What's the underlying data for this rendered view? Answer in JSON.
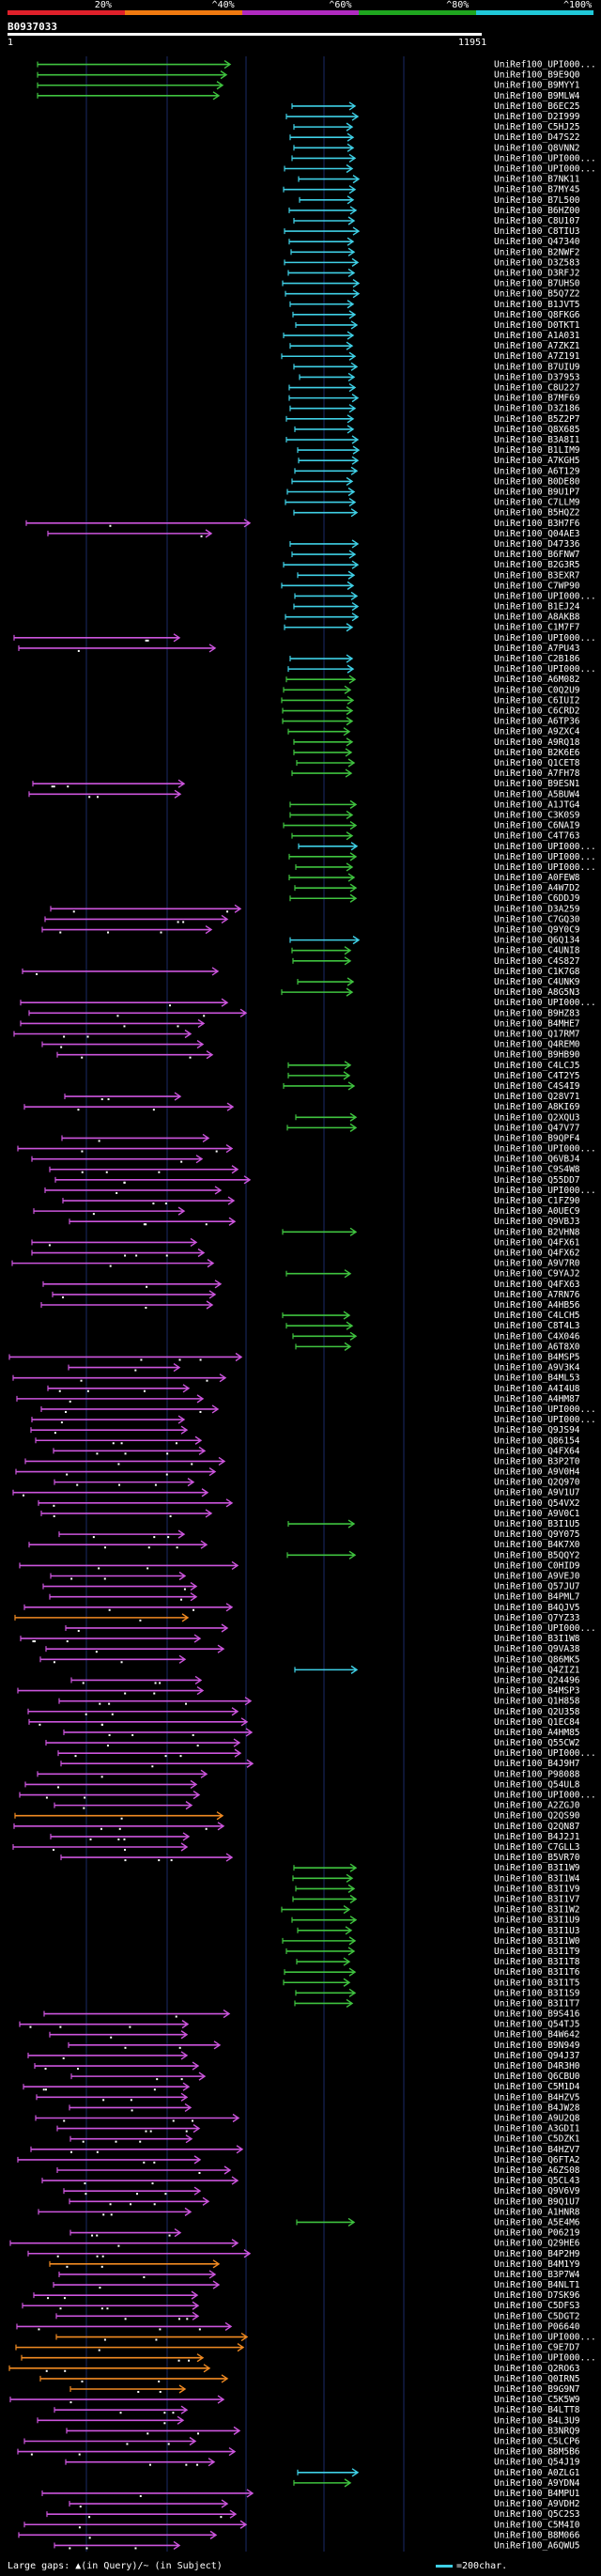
{
  "legend": [
    {
      "label": "20%",
      "color": "#e0202a"
    },
    {
      "label": "^40%",
      "color": "#f07a10"
    },
    {
      "label": "^60%",
      "color": "#b02ac0"
    },
    {
      "label": "^80%",
      "color": "#1fa61f"
    },
    {
      "label": "^100%",
      "color": "#20c8d8"
    }
  ],
  "header": {
    "sequence_id": "B0937033",
    "range_start": "1",
    "range_end": "11951"
  },
  "colors": {
    "green": "#3fc33f",
    "cyan": "#3fd0e6",
    "magenta": "#cc55dd",
    "orange": "#f08a22",
    "grid": "#1a2a66"
  },
  "hits": [
    {
      "label": "UniRef100_UPI000...",
      "color": "green"
    },
    {
      "label": "UniRef100_B9E9Q0",
      "color": "green"
    },
    {
      "label": "UniRef100_B9MYY1",
      "color": "green"
    },
    {
      "label": "UniRef100_B9MLW4",
      "color": "green"
    },
    {
      "label": "UniRef100_B6EC25",
      "color": "cyan"
    },
    {
      "label": "UniRef100_D2I999",
      "color": "cyan"
    },
    {
      "label": "UniRef100_C5HJ25",
      "color": "cyan"
    },
    {
      "label": "UniRef100_D47S22",
      "color": "cyan"
    },
    {
      "label": "UniRef100_Q8VNN2",
      "color": "cyan"
    },
    {
      "label": "UniRef100_UPI000...",
      "color": "cyan"
    },
    {
      "label": "UniRef100_UPI000...",
      "color": "cyan"
    },
    {
      "label": "UniRef100_B7NK11",
      "color": "cyan"
    },
    {
      "label": "UniRef100_B7MY45",
      "color": "cyan"
    },
    {
      "label": "UniRef100_B7L500",
      "color": "cyan"
    },
    {
      "label": "UniRef100_B6HZ00",
      "color": "cyan"
    },
    {
      "label": "UniRef100_C8U107",
      "color": "cyan"
    },
    {
      "label": "UniRef100_C8TIU3",
      "color": "cyan"
    },
    {
      "label": "UniRef100_Q47340",
      "color": "cyan"
    },
    {
      "label": "UniRef100_B2NWF2",
      "color": "cyan"
    },
    {
      "label": "UniRef100_D3Z583",
      "color": "cyan"
    },
    {
      "label": "UniRef100_D3RFJ2",
      "color": "cyan"
    },
    {
      "label": "UniRef100_B7UHS0",
      "color": "cyan"
    },
    {
      "label": "UniRef100_B5Q7Z2",
      "color": "cyan"
    },
    {
      "label": "UniRef100_B1JVT5",
      "color": "cyan"
    },
    {
      "label": "UniRef100_Q8FKG6",
      "color": "cyan"
    },
    {
      "label": "UniRef100_D0TKT1",
      "color": "cyan"
    },
    {
      "label": "UniRef100_A1A031",
      "color": "cyan"
    },
    {
      "label": "UniRef100_A7ZKZ1",
      "color": "cyan"
    },
    {
      "label": "UniRef100_A7Z191",
      "color": "cyan"
    },
    {
      "label": "UniRef100_B7UIU9",
      "color": "cyan"
    },
    {
      "label": "UniRef100_D37953",
      "color": "cyan"
    },
    {
      "label": "UniRef100_C8U227",
      "color": "cyan"
    },
    {
      "label": "UniRef100_B7MF69",
      "color": "cyan"
    },
    {
      "label": "UniRef100_D3Z186",
      "color": "cyan"
    },
    {
      "label": "UniRef100_B5Z2P7",
      "color": "cyan"
    },
    {
      "label": "UniRef100_Q8X685",
      "color": "cyan"
    },
    {
      "label": "UniRef100_B3A8I1",
      "color": "cyan"
    },
    {
      "label": "UniRef100_B1LIM9",
      "color": "cyan"
    },
    {
      "label": "UniRef100_A7KGH5",
      "color": "cyan"
    },
    {
      "label": "UniRef100_A6T129",
      "color": "cyan"
    },
    {
      "label": "UniRef100_B0DE80",
      "color": "cyan"
    },
    {
      "label": "UniRef100_B9U1P7",
      "color": "cyan"
    },
    {
      "label": "UniRef100_C7LLM9",
      "color": "cyan"
    },
    {
      "label": "UniRef100_B5HQZ2",
      "color": "cyan"
    },
    {
      "label": "UniRef100_B3H7F6",
      "color": "magenta"
    },
    {
      "label": "UniRef100_Q04AE3",
      "color": "magenta"
    },
    {
      "label": "UniRef100_D47336",
      "color": "cyan"
    },
    {
      "label": "UniRef100_B6FNW7",
      "color": "cyan"
    },
    {
      "label": "UniRef100_B2G3R5",
      "color": "cyan"
    },
    {
      "label": "UniRef100_B3EXR7",
      "color": "cyan"
    },
    {
      "label": "UniRef100_C7WP90",
      "color": "cyan"
    },
    {
      "label": "UniRef100_UPI000...",
      "color": "cyan"
    },
    {
      "label": "UniRef100_B1EJ24",
      "color": "cyan"
    },
    {
      "label": "UniRef100_A8AKB8",
      "color": "cyan"
    },
    {
      "label": "UniRef100_C1M7F7",
      "color": "cyan"
    },
    {
      "label": "UniRef100_UPI000...",
      "color": "magenta"
    },
    {
      "label": "UniRef100_A7PU43",
      "color": "magenta"
    },
    {
      "label": "UniRef100_C2B186",
      "color": "cyan"
    },
    {
      "label": "UniRef100_UPI000...",
      "color": "cyan"
    },
    {
      "label": "UniRef100_A6M082",
      "color": "green"
    },
    {
      "label": "UniRef100_C0Q2U9",
      "color": "green"
    },
    {
      "label": "UniRef100_C6IUI2",
      "color": "green"
    },
    {
      "label": "UniRef100_C6CRD2",
      "color": "green"
    },
    {
      "label": "UniRef100_A6TP36",
      "color": "green"
    },
    {
      "label": "UniRef100_A9ZXC4",
      "color": "green"
    },
    {
      "label": "UniRef100_A9RQ18",
      "color": "green"
    },
    {
      "label": "UniRef100_B2K6E6",
      "color": "green"
    },
    {
      "label": "UniRef100_Q1CET8",
      "color": "green"
    },
    {
      "label": "UniRef100_A7FH78",
      "color": "green"
    },
    {
      "label": "UniRef100_B9ESN1",
      "color": "magenta"
    },
    {
      "label": "UniRef100_A5BUW4",
      "color": "magenta"
    },
    {
      "label": "UniRef100_A1JTG4",
      "color": "green"
    },
    {
      "label": "UniRef100_C3K0S9",
      "color": "green"
    },
    {
      "label": "UniRef100_C6NAI9",
      "color": "green"
    },
    {
      "label": "UniRef100_C4T763",
      "color": "green"
    },
    {
      "label": "UniRef100_UPI000...",
      "color": "cyan"
    },
    {
      "label": "UniRef100_UPI000...",
      "color": "green"
    },
    {
      "label": "UniRef100_UPI000...",
      "color": "green"
    },
    {
      "label": "UniRef100_A0FEW8",
      "color": "green"
    },
    {
      "label": "UniRef100_A4W7D2",
      "color": "green"
    },
    {
      "label": "UniRef100_C6DDJ9",
      "color": "green"
    },
    {
      "label": "UniRef100_D3A259",
      "color": "magenta"
    },
    {
      "label": "UniRef100_C7GQ30",
      "color": "magenta"
    },
    {
      "label": "UniRef100_Q9Y0C9",
      "color": "magenta"
    },
    {
      "label": "UniRef100_Q6Q134",
      "color": "cyan"
    },
    {
      "label": "UniRef100_C4UNI8",
      "color": "green"
    },
    {
      "label": "UniRef100_C4S827",
      "color": "green"
    },
    {
      "label": "UniRef100_C1K7G8",
      "color": "magenta"
    },
    {
      "label": "UniRef100_C4UNK9",
      "color": "green"
    },
    {
      "label": "UniRef100_A8G5N3",
      "color": "green"
    },
    {
      "label": "UniRef100_UPI000...",
      "color": "magenta"
    },
    {
      "label": "UniRef100_B9HZ83",
      "color": "magenta"
    },
    {
      "label": "UniRef100_B4MHE7",
      "color": "magenta"
    },
    {
      "label": "UniRef100_Q17RM7",
      "color": "magenta"
    },
    {
      "label": "UniRef100_Q4REM0",
      "color": "magenta"
    },
    {
      "label": "UniRef100_B9HB90",
      "color": "magenta"
    },
    {
      "label": "UniRef100_C4LCJ5",
      "color": "green"
    },
    {
      "label": "UniRef100_C4T2Y5",
      "color": "green"
    },
    {
      "label": "UniRef100_C4S4I9",
      "color": "green"
    },
    {
      "label": "UniRef100_Q28V71",
      "color": "magenta"
    },
    {
      "label": "UniRef100_A8KI69",
      "color": "magenta"
    },
    {
      "label": "UniRef100_Q2XQU3",
      "color": "green"
    },
    {
      "label": "UniRef100_Q47V77",
      "color": "green"
    },
    {
      "label": "UniRef100_B9QPF4",
      "color": "magenta"
    },
    {
      "label": "UniRef100_UPI000...",
      "color": "magenta"
    },
    {
      "label": "UniRef100_Q6VBJ4",
      "color": "magenta"
    },
    {
      "label": "UniRef100_C9S4W8",
      "color": "magenta"
    },
    {
      "label": "UniRef100_Q55DD7",
      "color": "magenta"
    },
    {
      "label": "UniRef100_UPI000...",
      "color": "magenta"
    },
    {
      "label": "UniRef100_C1FZ90",
      "color": "magenta"
    },
    {
      "label": "UniRef100_A0UEC9",
      "color": "magenta"
    },
    {
      "label": "UniRef100_Q9VBJ3",
      "color": "magenta"
    },
    {
      "label": "UniRef100_B2VHN8",
      "color": "green"
    },
    {
      "label": "UniRef100_Q4FX61",
      "color": "magenta"
    },
    {
      "label": "UniRef100_Q4FX62",
      "color": "magenta"
    },
    {
      "label": "UniRef100_A9V7R0",
      "color": "magenta"
    },
    {
      "label": "UniRef100_C9YAJ2",
      "color": "green"
    },
    {
      "label": "UniRef100_Q4FX63",
      "color": "magenta"
    },
    {
      "label": "UniRef100_A7RN76",
      "color": "magenta"
    },
    {
      "label": "UniRef100_A4HB56",
      "color": "magenta"
    },
    {
      "label": "UniRef100_C4LCH5",
      "color": "green"
    },
    {
      "label": "UniRef100_C8T4L3",
      "color": "green"
    },
    {
      "label": "UniRef100_C4X046",
      "color": "green"
    },
    {
      "label": "UniRef100_A6T8X0",
      "color": "green"
    },
    {
      "label": "UniRef100_B4MSP5",
      "color": "magenta"
    },
    {
      "label": "UniRef100_A9V3K4",
      "color": "magenta"
    },
    {
      "label": "UniRef100_B4ML53",
      "color": "magenta"
    },
    {
      "label": "UniRef100_A4I4U8",
      "color": "magenta"
    },
    {
      "label": "UniRef100_A4HM87",
      "color": "magenta"
    },
    {
      "label": "UniRef100_UPI000...",
      "color": "magenta"
    },
    {
      "label": "UniRef100_UPI000...",
      "color": "magenta"
    },
    {
      "label": "UniRef100_Q9JS94",
      "color": "magenta"
    },
    {
      "label": "UniRef100_Q86154",
      "color": "magenta"
    },
    {
      "label": "UniRef100_Q4FX64",
      "color": "magenta"
    },
    {
      "label": "UniRef100_B3P2T0",
      "color": "magenta"
    },
    {
      "label": "UniRef100_A9V0H4",
      "color": "magenta"
    },
    {
      "label": "UniRef100_Q2Q970",
      "color": "magenta"
    },
    {
      "label": "UniRef100_A9V1U7",
      "color": "magenta"
    },
    {
      "label": "UniRef100_Q54VX2",
      "color": "magenta"
    },
    {
      "label": "UniRef100_A9V0C1",
      "color": "magenta"
    },
    {
      "label": "UniRef100_B3I1U5",
      "color": "green"
    },
    {
      "label": "UniRef100_Q9Y075",
      "color": "magenta"
    },
    {
      "label": "UniRef100_B4K7X0",
      "color": "magenta"
    },
    {
      "label": "UniRef100_B5QQY2",
      "color": "green"
    },
    {
      "label": "UniRef100_C0HID9",
      "color": "magenta"
    },
    {
      "label": "UniRef100_A9VEJ0",
      "color": "magenta"
    },
    {
      "label": "UniRef100_Q57JU7",
      "color": "magenta"
    },
    {
      "label": "UniRef100_B4PML7",
      "color": "magenta"
    },
    {
      "label": "UniRef100_B4QJV5",
      "color": "magenta"
    },
    {
      "label": "UniRef100_Q7YZ33",
      "color": "orange"
    },
    {
      "label": "UniRef100_UPI000...",
      "color": "magenta"
    },
    {
      "label": "UniRef100_B3I1W8",
      "color": "magenta"
    },
    {
      "label": "UniRef100_Q9VA38",
      "color": "magenta"
    },
    {
      "label": "UniRef100_Q86MK5",
      "color": "magenta"
    },
    {
      "label": "UniRef100_Q4ZIZ1",
      "color": "cyan"
    },
    {
      "label": "UniRef100_Q24496",
      "color": "magenta"
    },
    {
      "label": "UniRef100_B4MSP3",
      "color": "magenta"
    },
    {
      "label": "UniRef100_Q1H858",
      "color": "magenta"
    },
    {
      "label": "UniRef100_Q2U358",
      "color": "magenta"
    },
    {
      "label": "UniRef100_Q1EC84",
      "color": "magenta"
    },
    {
      "label": "UniRef100_A4HM85",
      "color": "magenta"
    },
    {
      "label": "UniRef100_Q55CW2",
      "color": "magenta"
    },
    {
      "label": "UniRef100_UPI000...",
      "color": "magenta"
    },
    {
      "label": "UniRef100_B4J9H7",
      "color": "magenta"
    },
    {
      "label": "UniRef100_P98088",
      "color": "magenta"
    },
    {
      "label": "UniRef100_Q54UL8",
      "color": "magenta"
    },
    {
      "label": "UniRef100_UPI000...",
      "color": "magenta"
    },
    {
      "label": "UniRef100_A2ZGJ0",
      "color": "magenta"
    },
    {
      "label": "UniRef100_Q2QS90",
      "color": "orange"
    },
    {
      "label": "UniRef100_Q2QN87",
      "color": "magenta"
    },
    {
      "label": "UniRef100_B4J2J1",
      "color": "magenta"
    },
    {
      "label": "UniRef100_C7GLL3",
      "color": "magenta"
    },
    {
      "label": "UniRef100_B5VR70",
      "color": "magenta"
    },
    {
      "label": "UniRef100_B3I1W9",
      "color": "green"
    },
    {
      "label": "UniRef100_B3I1W4",
      "color": "green"
    },
    {
      "label": "UniRef100_B3I1V9",
      "color": "green"
    },
    {
      "label": "UniRef100_B3I1V7",
      "color": "green"
    },
    {
      "label": "UniRef100_B3I1W2",
      "color": "green"
    },
    {
      "label": "UniRef100_B3I1U9",
      "color": "green"
    },
    {
      "label": "UniRef100_B3I1U3",
      "color": "green"
    },
    {
      "label": "UniRef100_B3I1W0",
      "color": "green"
    },
    {
      "label": "UniRef100_B3I1T9",
      "color": "green"
    },
    {
      "label": "UniRef100_B3I1T8",
      "color": "green"
    },
    {
      "label": "UniRef100_B3I1T6",
      "color": "green"
    },
    {
      "label": "UniRef100_B3I1T5",
      "color": "green"
    },
    {
      "label": "UniRef100_B3I1S9",
      "color": "green"
    },
    {
      "label": "UniRef100_B3I1T7",
      "color": "green"
    },
    {
      "label": "UniRef100_B9S416",
      "color": "magenta"
    },
    {
      "label": "UniRef100_Q54TJ5",
      "color": "magenta"
    },
    {
      "label": "UniRef100_B4W642",
      "color": "magenta"
    },
    {
      "label": "UniRef100_B9N949",
      "color": "magenta"
    },
    {
      "label": "UniRef100_Q94J37",
      "color": "magenta"
    },
    {
      "label": "UniRef100_D4R3H0",
      "color": "magenta"
    },
    {
      "label": "UniRef100_Q6CBU0",
      "color": "magenta"
    },
    {
      "label": "UniRef100_C5M1D4",
      "color": "magenta"
    },
    {
      "label": "UniRef100_B4HZV5",
      "color": "magenta"
    },
    {
      "label": "UniRef100_B4JW28",
      "color": "magenta"
    },
    {
      "label": "UniRef100_A9U2Q8",
      "color": "magenta"
    },
    {
      "label": "UniRef100_A3GDI1",
      "color": "magenta"
    },
    {
      "label": "UniRef100_C5DZK1",
      "color": "magenta"
    },
    {
      "label": "UniRef100_B4HZV7",
      "color": "magenta"
    },
    {
      "label": "UniRef100_Q6FTA2",
      "color": "magenta"
    },
    {
      "label": "UniRef100_A6ZS08",
      "color": "magenta"
    },
    {
      "label": "UniRef100_Q5CL43",
      "color": "magenta"
    },
    {
      "label": "UniRef100_Q9V6V9",
      "color": "magenta"
    },
    {
      "label": "UniRef100_B9Q1U7",
      "color": "magenta"
    },
    {
      "label": "UniRef100_A1HNR8",
      "color": "magenta"
    },
    {
      "label": "UniRef100_A5E4M6",
      "color": "green"
    },
    {
      "label": "UniRef100_P06219",
      "color": "magenta"
    },
    {
      "label": "UniRef100_Q29HE6",
      "color": "magenta"
    },
    {
      "label": "UniRef100_B4P2H9",
      "color": "magenta"
    },
    {
      "label": "UniRef100_B4M1Y9",
      "color": "orange"
    },
    {
      "label": "UniRef100_B3P7W4",
      "color": "magenta"
    },
    {
      "label": "UniRef100_B4NLT1",
      "color": "magenta"
    },
    {
      "label": "UniRef100_D7SK96",
      "color": "magenta"
    },
    {
      "label": "UniRef100_C5DFS3",
      "color": "magenta"
    },
    {
      "label": "UniRef100_C5DGT2",
      "color": "magenta"
    },
    {
      "label": "UniRef100_P06640",
      "color": "magenta"
    },
    {
      "label": "UniRef100_UPI000...",
      "color": "orange"
    },
    {
      "label": "UniRef100_C9E7D7",
      "color": "orange"
    },
    {
      "label": "UniRef100_UPI000...",
      "color": "orange"
    },
    {
      "label": "UniRef100_Q2RO63",
      "color": "orange"
    },
    {
      "label": "UniRef100_Q0IRN5",
      "color": "orange"
    },
    {
      "label": "UniRef100_B9G9N7",
      "color": "orange"
    },
    {
      "label": "UniRef100_C5K5W9",
      "color": "magenta"
    },
    {
      "label": "UniRef100_B4LTT8",
      "color": "magenta"
    },
    {
      "label": "UniRef100_B4L3U9",
      "color": "magenta"
    },
    {
      "label": "UniRef100_B3NRQ9",
      "color": "magenta"
    },
    {
      "label": "UniRef100_C5LCP6",
      "color": "magenta"
    },
    {
      "label": "UniRef100_B8M5B6",
      "color": "magenta"
    },
    {
      "label": "UniRef100_Q54J19",
      "color": "magenta"
    },
    {
      "label": "UniRef100_A0ZLG1",
      "color": "cyan"
    },
    {
      "label": "UniRef100_A9YDN4",
      "color": "green"
    },
    {
      "label": "UniRef100_B4MPU1",
      "color": "magenta"
    },
    {
      "label": "UniRef100_A9VDH2",
      "color": "magenta"
    },
    {
      "label": "UniRef100_Q5C2S3",
      "color": "magenta"
    },
    {
      "label": "UniRef100_C5M4I0",
      "color": "magenta"
    },
    {
      "label": "UniRef100_B8M066",
      "color": "magenta"
    },
    {
      "label": "UniRef100_A6QWU5",
      "color": "magenta"
    }
  ],
  "footer": {
    "note": "Large gaps: ▲(in Query)/~ (in Subject)",
    "scale": "=200char."
  }
}
